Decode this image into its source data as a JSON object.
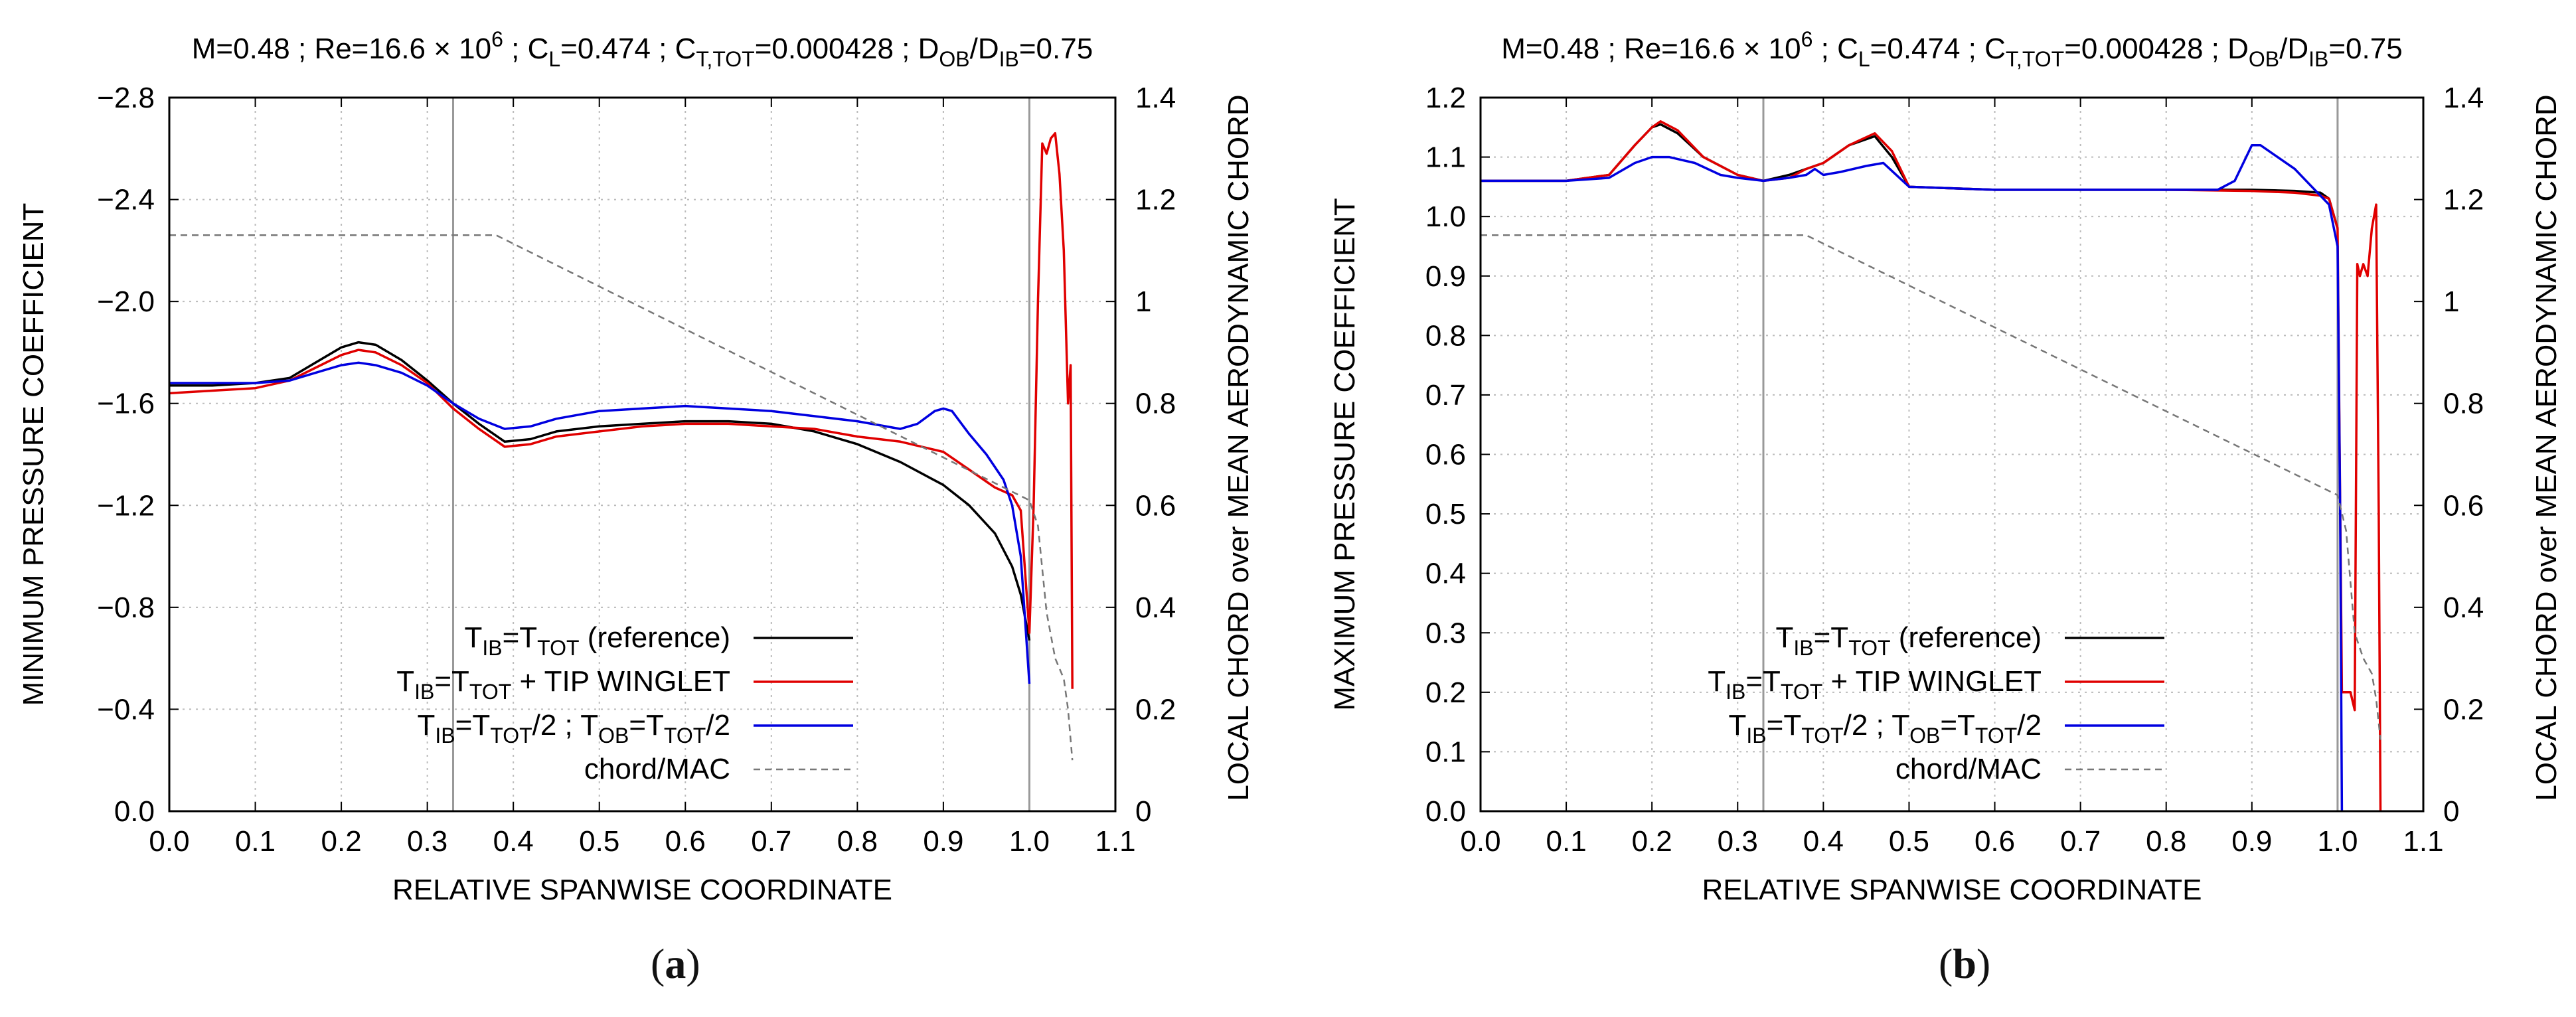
{
  "chart_data": [
    {
      "type": "line",
      "panel": "(a)",
      "title": "M=0.48 ; Re=16.6 × 10^6 ; C_L=0.474 ; C_T,TOT=0.000428 ; D_OB/D_IB=0.75",
      "xlabel": "RELATIVE SPANWISE COORDINATE",
      "ylabel": "MINIMUM PRESSURE COEFFICIENT",
      "y2label": "LOCAL CHORD over MEAN AERODYNAMIC CHORD",
      "xlim": [
        0,
        1.1
      ],
      "ylim": [
        0,
        -2.8
      ],
      "y2lim": [
        0,
        1.4
      ],
      "x_ticks": [
        "0.0",
        "0.1",
        "0.2",
        "0.3",
        "0.4",
        "0.5",
        "0.6",
        "0.7",
        "0.8",
        "0.9",
        "1.0",
        "1.1"
      ],
      "y_ticks": [
        "0.0",
        "−0.4",
        "−0.8",
        "−1.2",
        "−1.6",
        "−2.0",
        "−2.4",
        "−2.8"
      ],
      "y2_ticks": [
        "0",
        "0.2",
        "0.4",
        "0.6",
        "0.8",
        "1",
        "1.2",
        "1.4"
      ],
      "vlines": [
        0.33,
        1.0
      ],
      "legend": [
        {
          "main": "T",
          "sub1": "IB",
          "eq": "=T",
          "sub2": "TOT",
          "rest": "    (reference)",
          "color": "#000000",
          "dash": false
        },
        {
          "main": "T",
          "sub1": "IB",
          "eq": "=T",
          "sub2": "TOT",
          "rest": " +  TIP WINGLET",
          "color": "#e00000",
          "dash": false
        },
        {
          "main": "T",
          "sub1": "IB",
          "eq": "=T",
          "sub2": "TOT",
          "rest": "/2 ; T",
          "sub3": "OB",
          "eq2": "=T",
          "sub4": "TOT",
          "rest2": "/2",
          "color": "#0000e0",
          "dash": false
        },
        {
          "label": "chord/MAC",
          "color": "#777777",
          "dash": true
        }
      ],
      "series": [
        {
          "name": "T_IB=T_TOT (reference)",
          "color": "#000000",
          "axis": "y",
          "x": [
            0,
            0.05,
            0.1,
            0.14,
            0.17,
            0.2,
            0.22,
            0.24,
            0.27,
            0.3,
            0.33,
            0.36,
            0.39,
            0.42,
            0.45,
            0.5,
            0.55,
            0.6,
            0.65,
            0.7,
            0.75,
            0.8,
            0.85,
            0.9,
            0.93,
            0.96,
            0.98,
            0.99,
            1.0
          ],
          "y": [
            -1.67,
            -1.67,
            -1.68,
            -1.7,
            -1.76,
            -1.82,
            -1.84,
            -1.83,
            -1.77,
            -1.69,
            -1.6,
            -1.52,
            -1.45,
            -1.46,
            -1.49,
            -1.51,
            -1.52,
            -1.53,
            -1.53,
            -1.52,
            -1.49,
            -1.44,
            -1.37,
            -1.28,
            -1.2,
            -1.09,
            -0.96,
            -0.85,
            -0.67
          ]
        },
        {
          "name": "T_IB=T_TOT + TIP WINGLET",
          "color": "#e00000",
          "axis": "y",
          "x": [
            0,
            0.05,
            0.1,
            0.14,
            0.17,
            0.2,
            0.22,
            0.24,
            0.27,
            0.3,
            0.33,
            0.36,
            0.39,
            0.42,
            0.45,
            0.5,
            0.55,
            0.6,
            0.65,
            0.7,
            0.75,
            0.8,
            0.85,
            0.9,
            0.93,
            0.96,
            0.98,
            0.99,
            1.0,
            1.005,
            1.01,
            1.015,
            1.02,
            1.025,
            1.03,
            1.035,
            1.04,
            1.045,
            1.048,
            1.05
          ],
          "y": [
            -1.64,
            -1.65,
            -1.66,
            -1.69,
            -1.74,
            -1.79,
            -1.81,
            -1.8,
            -1.75,
            -1.68,
            -1.58,
            -1.5,
            -1.43,
            -1.44,
            -1.47,
            -1.49,
            -1.51,
            -1.52,
            -1.52,
            -1.51,
            -1.5,
            -1.47,
            -1.45,
            -1.41,
            -1.34,
            -1.27,
            -1.24,
            -1.18,
            -0.7,
            -1.2,
            -2.0,
            -2.62,
            -2.58,
            -2.64,
            -2.66,
            -2.5,
            -2.2,
            -1.6,
            -1.75,
            -0.48
          ]
        },
        {
          "name": "T_IB=T_TOT/2 ; T_OB=T_TOT/2",
          "color": "#0000e0",
          "axis": "y",
          "x": [
            0,
            0.05,
            0.1,
            0.14,
            0.17,
            0.2,
            0.22,
            0.24,
            0.27,
            0.3,
            0.33,
            0.36,
            0.39,
            0.42,
            0.45,
            0.5,
            0.55,
            0.6,
            0.65,
            0.7,
            0.75,
            0.8,
            0.85,
            0.87,
            0.89,
            0.9,
            0.91,
            0.93,
            0.95,
            0.97,
            0.98,
            0.99,
            1.0
          ],
          "y": [
            -1.68,
            -1.68,
            -1.68,
            -1.69,
            -1.72,
            -1.75,
            -1.76,
            -1.75,
            -1.72,
            -1.67,
            -1.6,
            -1.54,
            -1.5,
            -1.51,
            -1.54,
            -1.57,
            -1.58,
            -1.59,
            -1.58,
            -1.57,
            -1.55,
            -1.53,
            -1.5,
            -1.52,
            -1.57,
            -1.58,
            -1.57,
            -1.48,
            -1.4,
            -1.3,
            -1.2,
            -1.0,
            -0.5
          ]
        },
        {
          "name": "chord/MAC",
          "color": "#777777",
          "axis": "y2",
          "dash": true,
          "x": [
            0,
            0.38,
            1.0,
            1.01,
            1.02,
            1.03,
            1.04,
            1.045,
            1.05
          ],
          "y": [
            1.13,
            1.13,
            0.61,
            0.56,
            0.39,
            0.3,
            0.26,
            0.2,
            0.1
          ]
        }
      ]
    },
    {
      "type": "line",
      "panel": "(b)",
      "title": "M=0.48 ; Re=16.6 × 10^6 ; C_L=0.474 ; C_T,TOT=0.000428 ; D_OB/D_IB=0.75",
      "xlabel": "RELATIVE SPANWISE COORDINATE",
      "ylabel": "MAXIMUM PRESSURE COEFFICIENT",
      "y2label": "LOCAL CHORD over MEAN AERODYNAMIC CHORD",
      "xlim": [
        0,
        1.1
      ],
      "ylim": [
        0,
        1.2
      ],
      "y2lim": [
        0,
        1.4
      ],
      "x_ticks": [
        "0.0",
        "0.1",
        "0.2",
        "0.3",
        "0.4",
        "0.5",
        "0.6",
        "0.7",
        "0.8",
        "0.9",
        "1.0",
        "1.1"
      ],
      "y_ticks": [
        "0.0",
        "0.1",
        "0.2",
        "0.3",
        "0.4",
        "0.5",
        "0.6",
        "0.7",
        "0.8",
        "0.9",
        "1.0",
        "1.1",
        "1.2"
      ],
      "y2_ticks": [
        "0",
        "0.2",
        "0.4",
        "0.6",
        "0.8",
        "1",
        "1.2",
        "1.4"
      ],
      "vlines": [
        0.33,
        1.0
      ],
      "legend": [
        {
          "main": "T",
          "sub1": "IB",
          "eq": "=T",
          "sub2": "TOT",
          "rest": "    (reference)",
          "color": "#000000",
          "dash": false
        },
        {
          "main": "T",
          "sub1": "IB",
          "eq": "=T",
          "sub2": "TOT",
          "rest": " +  TIP WINGLET",
          "color": "#e00000",
          "dash": false
        },
        {
          "main": "T",
          "sub1": "IB",
          "eq": "=T",
          "sub2": "TOT",
          "rest": "/2 ; T",
          "sub3": "OB",
          "eq2": "=T",
          "sub4": "TOT",
          "rest2": "/2",
          "color": "#0000e0",
          "dash": false
        },
        {
          "label": "chord/MAC",
          "color": "#777777",
          "dash": true
        }
      ],
      "series": [
        {
          "name": "T_IB=T_TOT (reference)",
          "color": "#000000",
          "axis": "y",
          "x": [
            0,
            0.1,
            0.15,
            0.18,
            0.2,
            0.21,
            0.23,
            0.26,
            0.3,
            0.33,
            0.36,
            0.38,
            0.4,
            0.43,
            0.46,
            0.48,
            0.5,
            0.6,
            0.7,
            0.8,
            0.9,
            0.95,
            0.98,
            0.99,
            1.0
          ],
          "y": [
            1.06,
            1.06,
            1.07,
            1.12,
            1.15,
            1.155,
            1.14,
            1.1,
            1.07,
            1.06,
            1.07,
            1.08,
            1.09,
            1.12,
            1.135,
            1.1,
            1.05,
            1.045,
            1.045,
            1.045,
            1.045,
            1.043,
            1.04,
            1.03,
            0.98
          ]
        },
        {
          "name": "T_IB=T_TOT + TIP WINGLET",
          "color": "#e00000",
          "axis": "y",
          "x": [
            0,
            0.1,
            0.15,
            0.18,
            0.2,
            0.21,
            0.23,
            0.26,
            0.3,
            0.33,
            0.36,
            0.38,
            0.4,
            0.43,
            0.46,
            0.48,
            0.5,
            0.6,
            0.7,
            0.8,
            0.9,
            0.95,
            0.98,
            0.99,
            1.0,
            1.005,
            1.01,
            1.015,
            1.02,
            1.023,
            1.026,
            1.03,
            1.035,
            1.04,
            1.045,
            1.048,
            1.05
          ],
          "y": [
            1.06,
            1.06,
            1.07,
            1.12,
            1.15,
            1.16,
            1.145,
            1.1,
            1.07,
            1.06,
            1.065,
            1.08,
            1.09,
            1.12,
            1.14,
            1.11,
            1.05,
            1.045,
            1.045,
            1.045,
            1.043,
            1.04,
            1.035,
            1.03,
            0.98,
            0.2,
            0.2,
            0.2,
            0.17,
            0.92,
            0.9,
            0.92,
            0.9,
            0.98,
            1.02,
            0.5,
            0.0
          ]
        },
        {
          "name": "T_IB=T_TOT/2 ; T_OB=T_TOT/2",
          "color": "#0000e0",
          "axis": "y",
          "x": [
            0,
            0.1,
            0.15,
            0.18,
            0.2,
            0.22,
            0.25,
            0.28,
            0.3,
            0.33,
            0.36,
            0.38,
            0.39,
            0.4,
            0.42,
            0.45,
            0.47,
            0.5,
            0.6,
            0.7,
            0.8,
            0.86,
            0.88,
            0.9,
            0.91,
            0.93,
            0.95,
            0.97,
            0.99,
            1.0,
            1.003,
            1.005
          ],
          "y": [
            1.06,
            1.06,
            1.065,
            1.09,
            1.1,
            1.1,
            1.09,
            1.07,
            1.065,
            1.06,
            1.065,
            1.07,
            1.08,
            1.07,
            1.075,
            1.085,
            1.09,
            1.05,
            1.045,
            1.045,
            1.045,
            1.045,
            1.06,
            1.12,
            1.12,
            1.1,
            1.08,
            1.05,
            1.02,
            0.95,
            0.5,
            0.0
          ]
        },
        {
          "name": "chord/MAC",
          "color": "#777777",
          "axis": "y2",
          "dash": true,
          "x": [
            0,
            0.38,
            1.0,
            1.01,
            1.02,
            1.03,
            1.04,
            1.045,
            1.05
          ],
          "y": [
            1.13,
            1.13,
            0.62,
            0.55,
            0.35,
            0.3,
            0.27,
            0.22,
            0.14
          ]
        }
      ]
    }
  ],
  "captions": {
    "a": "a",
    "b": "b"
  }
}
